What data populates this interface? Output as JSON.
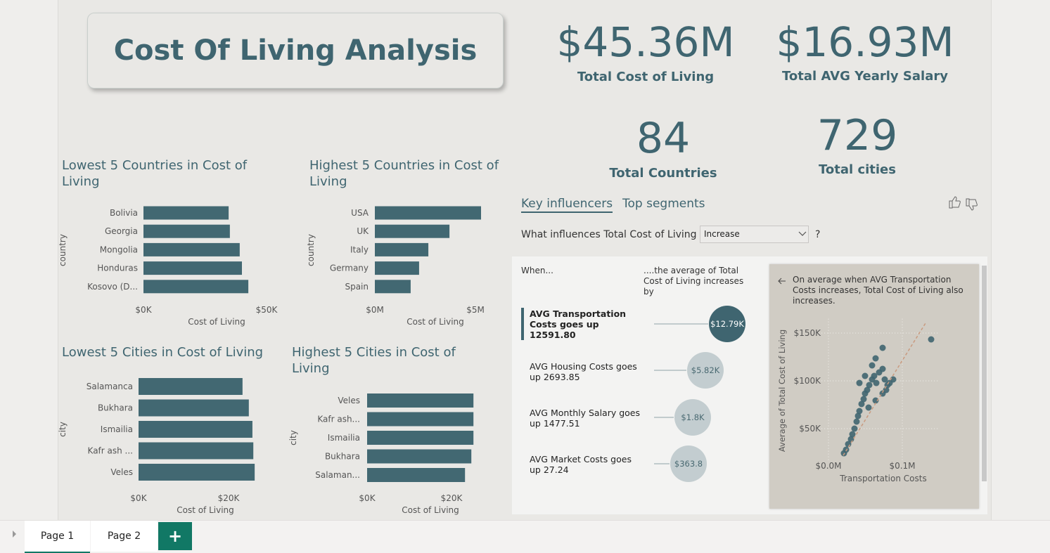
{
  "header": {
    "title": "Cost Of Living Analysis"
  },
  "kpis": [
    {
      "value": "$45.36M",
      "label": "Total Cost of Living"
    },
    {
      "value": "$16.93M",
      "label": "Total AVG Yearly Salary"
    },
    {
      "value": 84,
      "label": "Total Countries"
    },
    {
      "value": 729,
      "label": "Total cities"
    }
  ],
  "chart_data": [
    {
      "type": "bar",
      "title": "Lowest 5 Countries in Cost of Living",
      "categories": [
        "Bolivia",
        "Georgia",
        "Mongolia",
        "Honduras",
        "Kosovo (D..."
      ],
      "values": [
        34600,
        35100,
        39100,
        40000,
        42600
      ],
      "xlim": [
        0,
        55000
      ],
      "xticks": [
        {
          "value": 0,
          "label": "$0K"
        },
        {
          "value": 50000,
          "label": "$50K"
        }
      ],
      "xlabel": "Cost of Living",
      "ylabel": "country",
      "color": "#426872"
    },
    {
      "type": "bar",
      "title": "Highest 5 Countries in Cost of Living",
      "categories": [
        "USA",
        "UK",
        "Italy",
        "Germany",
        "Spain"
      ],
      "values": [
        5280000,
        3710000,
        2660000,
        2200000,
        1780000
      ],
      "xlim": [
        0,
        5500000
      ],
      "xticks": [
        {
          "value": 0,
          "label": "$0M"
        },
        {
          "value": 5000000,
          "label": "$5M"
        }
      ],
      "xlabel": "Cost of Living",
      "ylabel": "country",
      "color": "#426872"
    },
    {
      "type": "bar",
      "title": "Lowest 5 Cities in Cost of Living",
      "categories": [
        "Salamanca",
        "Bukhara",
        "Ismailia",
        "Kafr ash ...",
        "Veles"
      ],
      "values": [
        23100,
        24500,
        25300,
        25500,
        25800
      ],
      "xlim": [
        0,
        27000
      ],
      "xticks": [
        {
          "value": 0,
          "label": "$0K"
        },
        {
          "value": 20000,
          "label": "$20K"
        }
      ],
      "xlabel": "Cost of Living",
      "ylabel": "city",
      "color": "#426872"
    },
    {
      "type": "bar",
      "title": "Highest 5 Cities in Cost of Living",
      "categories": [
        "Veles",
        "Kafr ash...",
        "Ismailia",
        "Bukhara",
        "Salaman..."
      ],
      "values": [
        25200,
        25200,
        25200,
        24700,
        23200
      ],
      "xlim": [
        0,
        27000
      ],
      "xticks": [
        {
          "value": 0,
          "label": "$0K"
        },
        {
          "value": 20000,
          "label": "$20K"
        }
      ],
      "xlabel": "Cost of Living",
      "ylabel": "city",
      "color": "#426872"
    },
    {
      "type": "scatter",
      "x": [
        20950,
        23810,
        26670,
        30480,
        32380,
        35240,
        38100,
        40000,
        41900,
        44760,
        47620,
        49520,
        52380,
        55240,
        59050,
        61900,
        64760,
        68570,
        73330,
        76190,
        80000,
        82860,
        87620,
        41900,
        49520,
        59050,
        63810,
        73330,
        54290,
        63810,
        73330,
        78100,
        139050
      ],
      "y": [
        24260,
        27940,
        33820,
        38970,
        44120,
        50000,
        57350,
        63240,
        68380,
        75740,
        80880,
        86760,
        90440,
        95590,
        101470,
        105150,
        97790,
        108820,
        112500,
        101470,
        95590,
        97790,
        101470,
        97790,
        105150,
        116180,
        123530,
        134560,
        72060,
        79410,
        86760,
        90440,
        143380
      ],
      "xlim": [
        -17000,
        150000
      ],
      "ylim": [
        15000,
        165000
      ],
      "xticks": [
        {
          "value": 0,
          "label": "$0.0M"
        },
        {
          "value": 100000,
          "label": "$0.1M"
        }
      ],
      "yticks": [
        {
          "value": 50000,
          "label": "$50K"
        },
        {
          "value": 100000,
          "label": "$100K"
        },
        {
          "value": 150000,
          "label": "$150K"
        }
      ],
      "xlabel": "Transportation Costs",
      "ylabel": "Average of Total Cost of Living",
      "color": "#3f6570",
      "grid": true,
      "trendline": {
        "x": [
          20000,
          131400
        ],
        "y": [
          22000,
          160300
        ],
        "color": "#c99a7f"
      }
    }
  ],
  "influencers": {
    "tabs": [
      "Key influencers",
      "Top segments"
    ],
    "question": "What influences Total Cost of Living to",
    "dropdown": "Increase",
    "question_mark": "?",
    "when_header": "When...",
    "effect_header": "....the average of Total Cost of Living increases by",
    "items": [
      {
        "label": "AVG Transportation Costs goes up 12591.80",
        "value": 12790,
        "value_label": "$12.79K"
      },
      {
        "label": "AVG Housing Costs goes up 2693.85",
        "value": 5820,
        "value_label": "$5.82K"
      },
      {
        "label": "AVG Monthly Salary goes up 1477.51",
        "value": 1800,
        "value_label": "$1.8K"
      },
      {
        "label": "AVG Market Costs goes up 27.24",
        "value": 363.8,
        "value_label": "$363.8"
      }
    ],
    "detail_note": "On average when AVG Transportation Costs increases, Total Cost of Living also increases."
  },
  "tabs": {
    "pages": [
      "Page 1",
      "Page 2"
    ]
  }
}
